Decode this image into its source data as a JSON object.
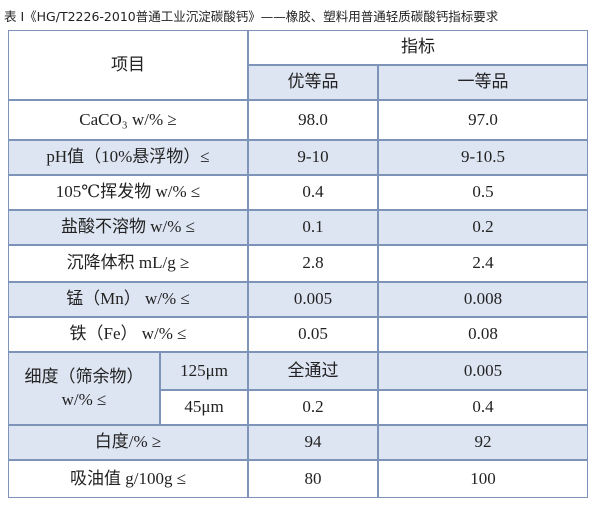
{
  "title": "表 I《HG/T2226-2010普通工业沉淀碳酸钙》——橡胶、塑料用普通轻质碳酸钙指标要求",
  "header": {
    "item": "项目",
    "indicator": "指标",
    "grades": [
      "优等品",
      "一等品"
    ]
  },
  "rows": [
    [
      "CaCO₃ w/% ≥",
      "98.0",
      "97.0"
    ],
    [
      "pH值（10%悬浮物）≤",
      "9-10",
      "9-10.5"
    ],
    [
      "105℃挥发物 w/% ≤",
      "0.4",
      "0.5"
    ],
    [
      "盐酸不溶物 w/% ≤",
      "0.1",
      "0.2"
    ],
    [
      "沉降体积 mL/g ≥",
      "2.8",
      "2.4"
    ],
    [
      "锰（Mn） w/% ≤",
      "0.005",
      "0.008"
    ],
    [
      "铁（Fe） w/% ≤",
      "0.05",
      "0.08"
    ]
  ],
  "fineness": {
    "label": [
      "细度（筛余物）",
      "w/% ≤"
    ],
    "sizes": [
      [
        "125μm",
        "全通过",
        "0.005"
      ],
      [
        "45μm",
        "0.2",
        "0.4"
      ]
    ]
  },
  "rows_after": [
    [
      "白度/% ≥",
      "94",
      "92"
    ],
    [
      "吸油值 g/100g ≤",
      "80",
      "100"
    ]
  ]
}
